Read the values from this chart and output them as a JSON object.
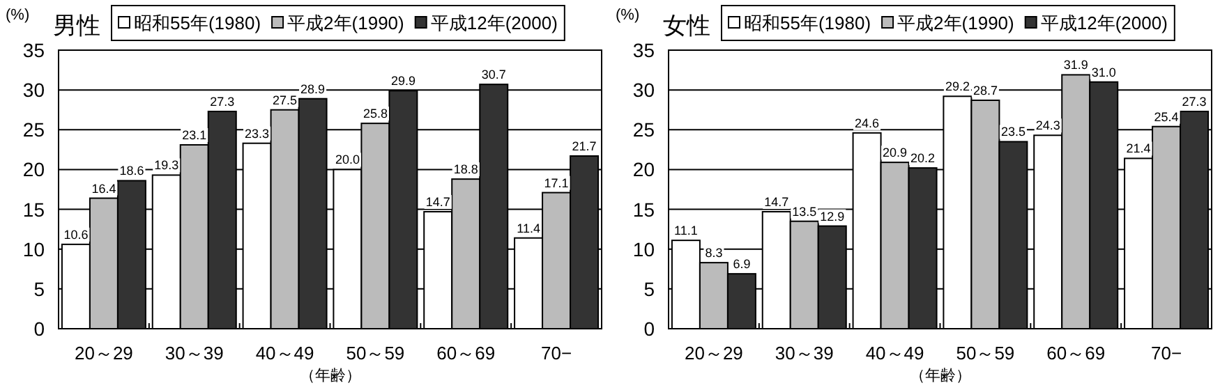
{
  "chart_data": [
    {
      "type": "bar",
      "title": "男性",
      "ylabel": "(%)",
      "xlabel": "（年齢）",
      "categories": [
        "20～29",
        "30～39",
        "40～49",
        "50～59",
        "60～69",
        "70−"
      ],
      "series": [
        {
          "name": "昭和55年(1980)",
          "color": "#ffffff",
          "values": [
            10.6,
            19.3,
            23.3,
            20.0,
            14.7,
            11.4
          ],
          "value_labels": [
            "10.6",
            "19.3",
            "23.3",
            "20.0",
            "14.7",
            "11.4"
          ]
        },
        {
          "name": "平成2年(1990)",
          "color": "#bbbbbb",
          "values": [
            16.4,
            23.1,
            27.5,
            25.8,
            18.8,
            17.1
          ],
          "value_labels": [
            "16.4",
            "23.1",
            "27.5",
            "25.8",
            "18.8",
            "17.1"
          ]
        },
        {
          "name": "平成12年(2000)",
          "color": "#333333",
          "values": [
            18.6,
            27.3,
            28.9,
            29.9,
            30.7,
            21.7
          ],
          "value_labels": [
            "18.6",
            "27.3",
            "28.9",
            "29.9",
            "30.7",
            "21.7"
          ]
        }
      ],
      "ylim": [
        0,
        35
      ],
      "yticks": [
        0,
        5,
        10,
        15,
        20,
        25,
        30,
        35
      ],
      "grid": "y",
      "legend": "top"
    },
    {
      "type": "bar",
      "title": "女性",
      "ylabel": "(%)",
      "xlabel": "（年齢）",
      "categories": [
        "20～29",
        "30～39",
        "40～49",
        "50～59",
        "60～69",
        "70−"
      ],
      "series": [
        {
          "name": "昭和55年(1980)",
          "color": "#ffffff",
          "values": [
            11.1,
            14.7,
            24.6,
            29.2,
            24.3,
            21.4
          ],
          "value_labels": [
            "11.1",
            "14.7",
            "24.6",
            "29.2",
            "24.3",
            "21.4"
          ]
        },
        {
          "name": "平成2年(1990)",
          "color": "#bbbbbb",
          "values": [
            8.3,
            13.5,
            20.9,
            28.7,
            31.9,
            25.4
          ],
          "value_labels": [
            "8.3",
            "13.5",
            "20.9",
            "28.7",
            "31.9",
            "25.4"
          ]
        },
        {
          "name": "平成12年(2000)",
          "color": "#333333",
          "values": [
            6.9,
            12.9,
            20.2,
            23.5,
            31.0,
            27.3
          ],
          "value_labels": [
            "6.9",
            "12.9",
            "20.2",
            "23.5",
            "31.0",
            "27.3"
          ]
        }
      ],
      "ylim": [
        0,
        35
      ],
      "yticks": [
        0,
        5,
        10,
        15,
        20,
        25,
        30,
        35
      ],
      "grid": "y",
      "legend": "top"
    }
  ]
}
